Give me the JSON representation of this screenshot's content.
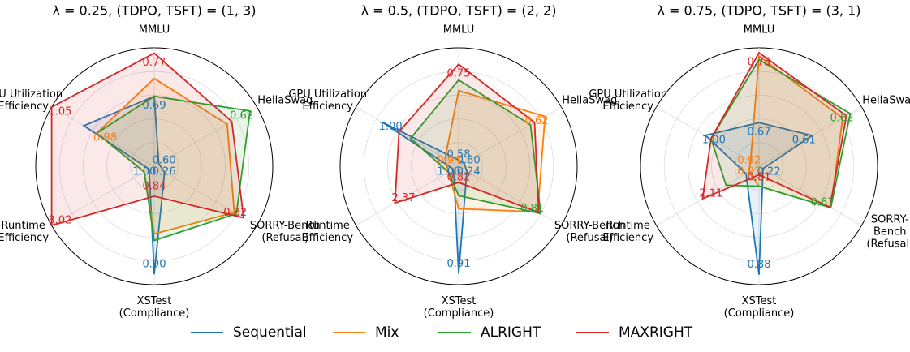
{
  "chart_data": [
    {
      "type": "radar",
      "title": "λ = 0.25, (TDPO, TSFT) = (1, 3)",
      "categories": [
        "MMLU",
        "HellaSwag",
        "SORRY-Bench\n(Refusal)",
        "XSTest\n(Compliance)",
        "Runtime\nEfficiency",
        "GPU Utilization\nEfficiency"
      ],
      "rlims": [
        [
          0.56,
          0.78
        ],
        [
          0.599,
          0.6215
        ],
        [
          0.187,
          0.914
        ],
        [
          0.817,
          0.908
        ],
        [
          0.894,
          3.02
        ],
        [
          0.891,
          1.05
        ]
      ],
      "series": [
        {
          "name": "Sequential",
          "color": "#1f77b4",
          "values": [
            0.69,
            0.6,
            0.26,
            0.9,
            1.0,
            1.0
          ],
          "value_labels": [
            "0.69",
            "0.60",
            "0.26",
            "0.90",
            "1.00",
            null
          ]
        },
        {
          "name": "Mix",
          "color": "#ff7f0e",
          "values": [
            0.723,
            0.615,
            0.754,
            0.869,
            1.1,
            0.98
          ],
          "value_labels": [
            null,
            null,
            null,
            null,
            null,
            "0.98"
          ]
        },
        {
          "name": "ALRIGHT",
          "color": "#2ca02c",
          "values": [
            0.69,
            0.62,
            0.769,
            0.874,
            1.1,
            0.98
          ],
          "value_labels": [
            null,
            "0.62",
            null,
            null,
            null,
            null
          ]
        },
        {
          "name": "MAXRIGHT",
          "color": "#d62728",
          "values": [
            0.77,
            0.616,
            0.82,
            0.84,
            3.02,
            1.05
          ],
          "value_labels": [
            "0.77",
            null,
            "0.82",
            "0.84",
            "3.02",
            "1.05"
          ]
        }
      ]
    },
    {
      "type": "radar",
      "title": "λ = 0.5, (TDPO, TSFT) = (2, 2)",
      "categories": [
        "MMLU",
        "HellaSwag",
        "SORRY-Bench\n(Refusal)",
        "XSTest\n(Compliance)",
        "Runtime\nEfficiency",
        "GPU Utilization\nEfficiency"
      ],
      "rlims": [
        [
          0.569,
          0.779
        ],
        [
          0.5987,
          0.624
        ],
        [
          0.177,
          0.969
        ],
        [
          0.804,
          0.921
        ],
        [
          0.88,
          3.28
        ],
        [
          0.927,
          1.025
        ]
      ],
      "series": [
        {
          "name": "Sequential",
          "color": "#1f77b4",
          "values": [
            0.58,
            0.6,
            0.24,
            0.91,
            1.0,
            1.0
          ],
          "value_labels": [
            "0.58",
            "0.60",
            "0.24",
            "0.91",
            "1.00",
            "1.00"
          ]
        },
        {
          "name": "Mix",
          "color": "#ff7f0e",
          "values": [
            0.703,
            0.62,
            0.787,
            0.846,
            1.12,
            0.94
          ],
          "value_labels": [
            null,
            "0.62",
            null,
            null,
            null,
            "0.94"
          ]
        },
        {
          "name": "ALRIGHT",
          "color": "#2ca02c",
          "values": [
            0.722,
            0.6164,
            0.81,
            0.833,
            1.12,
            0.973
          ],
          "value_labels": [
            null,
            null,
            "0.81",
            null,
            null,
            null
          ]
        },
        {
          "name": "MAXRIGHT",
          "color": "#d62728",
          "values": [
            0.75,
            0.6174,
            0.795,
            0.82,
            2.37,
            0.984
          ],
          "value_labels": [
            "0.75",
            null,
            null,
            "0.82",
            "2.37",
            null
          ]
        }
      ]
    },
    {
      "type": "radar",
      "title": "λ = 0.75, (TDPO, TSFT) = (3, 1)",
      "categories": [
        "MMLU",
        "HellaSwag",
        "SORRY-Bench\n(Refusal)",
        "XSTest\n(Compliance)",
        "Runtime\nEfficiency",
        "GPU Utilization\nEfficiency"
      ],
      "rlims": [
        [
          0.62,
          0.7556
        ],
        [
          0.596,
          0.623
        ],
        [
          0.193,
          0.875
        ],
        [
          0.804,
          0.887
        ],
        [
          0.668,
          3.29
        ],
        [
          0.905,
          1.087
        ]
      ],
      "series": [
        {
          "name": "Sequential",
          "color": "#1f77b4",
          "values": [
            0.67,
            0.61,
            0.22,
            0.88,
            1.0,
            1.0
          ],
          "value_labels": [
            "0.67",
            "0.61",
            "0.22",
            "0.88",
            null,
            "1.00"
          ]
        },
        {
          "name": "Mix",
          "color": "#ff7f0e",
          "values": [
            0.746,
            0.618,
            0.67,
            0.818,
            0.93,
            0.92
          ],
          "value_labels": [
            null,
            null,
            null,
            null,
            "0.93",
            "0.92"
          ]
        },
        {
          "name": "ALRIGHT",
          "color": "#2ca02c",
          "values": [
            0.742,
            0.62,
            0.67,
            0.818,
            1.51,
            0.99
          ],
          "value_labels": [
            null,
            "0.62",
            "0.67",
            null,
            null,
            null
          ]
        },
        {
          "name": "MAXRIGHT",
          "color": "#d62728",
          "values": [
            0.75,
            0.619,
            0.664,
            0.81,
            2.11,
            0.99
          ],
          "value_labels": [
            "0.75",
            null,
            null,
            "0.81",
            "2.11",
            null
          ]
        }
      ]
    }
  ]
}
